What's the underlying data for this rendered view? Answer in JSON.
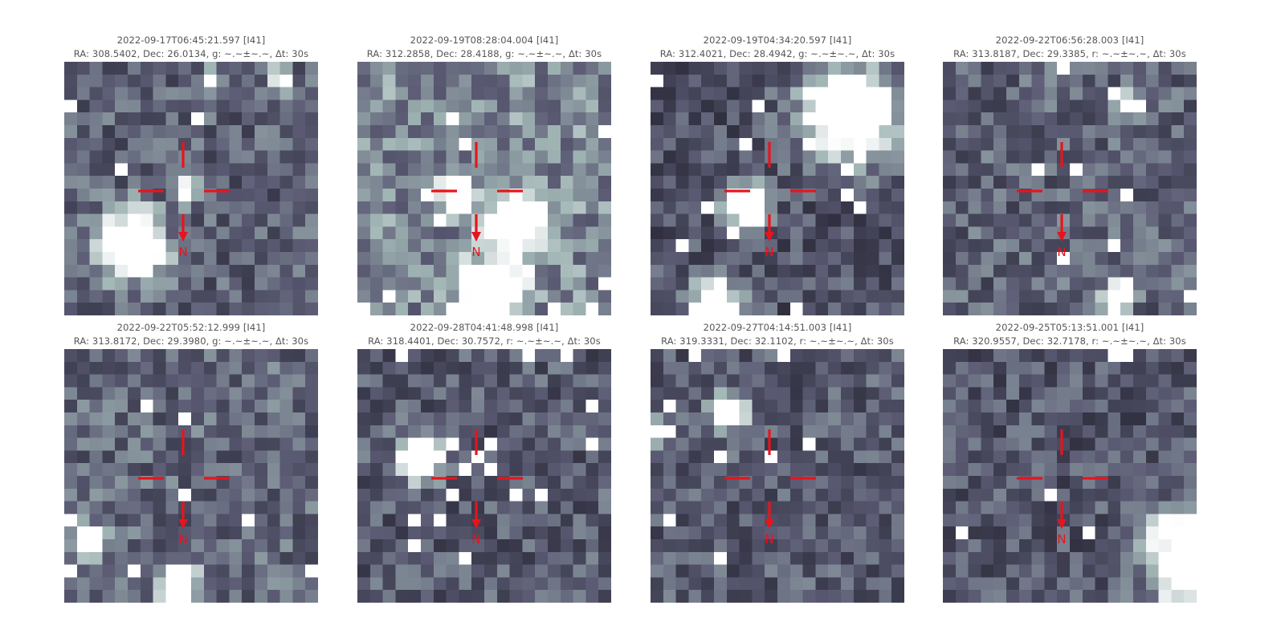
{
  "colors": {
    "reticle": "#e8141c",
    "cmap_dark": "#14141e",
    "cmap_mid": "#5a5a73",
    "cmap_light": "#9fb3b3",
    "cmap_white": "#ffffff"
  },
  "north_label": "N",
  "panels": [
    {
      "timestamp": "2022-09-17T06:45:21.597 [I41]",
      "info": "RA: 308.5402, Dec: 26.0134, g: ~.~±~.~, Δt: 30s",
      "seed": 11,
      "brightness": 0.45,
      "blobs": [
        [
          0.26,
          0.72,
          0.09
        ],
        [
          0.58,
          0.08,
          0.03
        ],
        [
          0.86,
          0.07,
          0.03
        ],
        [
          0.48,
          0.51,
          0.03
        ]
      ]
    },
    {
      "timestamp": "2022-09-19T08:28:04.004 [I41]",
      "info": "RA: 312.2858, Dec: 28.4188, g: ~.~±~.~, Δt: 30s",
      "seed": 23,
      "brightness": 0.62,
      "blobs": [
        [
          0.38,
          0.52,
          0.04
        ],
        [
          0.62,
          0.62,
          0.07
        ],
        [
          0.52,
          0.9,
          0.08
        ]
      ]
    },
    {
      "timestamp": "2022-09-19T04:34:20.597 [I41]",
      "info": "RA: 312.4021, Dec: 28.4942, g: ~.~±~.~, Δt: 30s",
      "seed": 37,
      "brightness": 0.38,
      "blobs": [
        [
          0.78,
          0.2,
          0.13
        ],
        [
          0.38,
          0.58,
          0.06
        ],
        [
          0.25,
          0.97,
          0.07
        ]
      ]
    },
    {
      "timestamp": "2022-09-22T06:56:28.003 [I41]",
      "info": "RA: 313.8187, Dec: 29.3385, r: ~.~±~.~, Δt: 30s",
      "seed": 41,
      "brightness": 0.46,
      "blobs": [
        [
          0.7,
          0.92,
          0.04
        ],
        [
          0.74,
          0.16,
          0.03
        ]
      ]
    },
    {
      "timestamp": "2022-09-22T05:52:12.999 [I41]",
      "info": "RA: 313.8172, Dec: 29.3980, g: ~.~±~.~, Δt: 30s",
      "seed": 53,
      "brightness": 0.48,
      "blobs": [
        [
          0.45,
          0.93,
          0.05
        ],
        [
          0.1,
          0.75,
          0.04
        ]
      ]
    },
    {
      "timestamp": "2022-09-28T04:41:48.998 [I41]",
      "info": "RA: 318.4401, Dec: 30.7572, r: ~.~±~.~, Δt: 30s",
      "seed": 67,
      "brightness": 0.42,
      "blobs": [
        [
          0.25,
          0.43,
          0.06
        ],
        [
          0.63,
          0.58,
          0.02
        ]
      ]
    },
    {
      "timestamp": "2022-09-27T04:14:51.003 [I41]",
      "info": "RA: 319.3331, Dec: 32.1102, r: ~.~±~.~, Δt: 30s",
      "seed": 79,
      "brightness": 0.42,
      "blobs": [
        [
          0.3,
          0.25,
          0.05
        ],
        [
          0.05,
          0.32,
          0.03
        ]
      ]
    },
    {
      "timestamp": "2022-09-25T05:13:51.001 [I41]",
      "info": "RA: 320.9557, Dec: 32.7178, r: ~.~±~.~, Δt: 30s",
      "seed": 97,
      "brightness": 0.4,
      "blobs": [
        [
          0.98,
          0.82,
          0.12
        ]
      ]
    }
  ]
}
